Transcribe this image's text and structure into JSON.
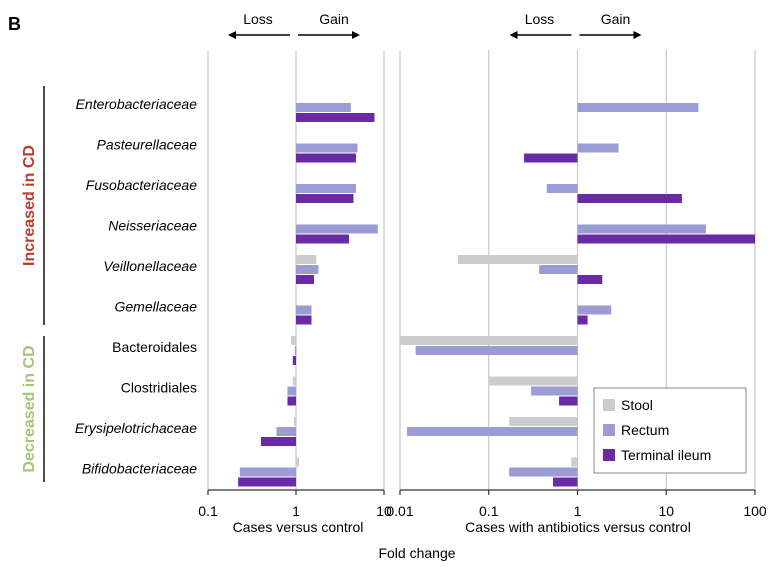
{
  "panel_label": "B",
  "colors": {
    "stool": "#cccccc",
    "rectum": "#9b9bd6",
    "ileum": "#6a2aa6",
    "increased": "#c0392b",
    "decreased": "#a6c47a",
    "grid": "#c8c8c8",
    "axis": "#333333"
  },
  "chart_data": {
    "type": "bar",
    "orientation": "horizontal",
    "scale": "log",
    "xlabel": "Fold change",
    "series_names": [
      "Stool",
      "Rectum",
      "Terminal ileum"
    ],
    "categories": [
      "Enterobacteriaceae",
      "Pasteurellaceae",
      "Fusobacteriaceae",
      "Neisseriaceae",
      "Veillonellaceae",
      "Gemellaceae",
      "Bacteroidales",
      "Clostridiales",
      "Erysipelotrichaceae",
      "Bifidobacteriaceae"
    ],
    "italic": [
      true,
      true,
      true,
      true,
      true,
      true,
      false,
      false,
      true,
      true
    ],
    "groups": [
      {
        "label": "Increased in CD",
        "from": 0,
        "to": 5
      },
      {
        "label": "Decreased in CD",
        "from": 6,
        "to": 9
      }
    ],
    "direction": {
      "loss": "Loss",
      "gain": "Gain"
    },
    "panels": [
      {
        "title": "Cases versus control",
        "xlim": [
          0.1,
          10
        ],
        "ticks": [
          0.1,
          1,
          10
        ],
        "tick_labels": [
          "0.1",
          "1",
          "10"
        ],
        "series": [
          {
            "name": "Stool",
            "values": [
              null,
              null,
              null,
              null,
              1.7,
              null,
              0.88,
              0.92,
              0.95,
              1.08
            ]
          },
          {
            "name": "Rectum",
            "values": [
              4.2,
              5.0,
              4.8,
              8.5,
              1.8,
              1.5,
              0.97,
              0.8,
              0.6,
              0.23
            ]
          },
          {
            "name": "Terminal ileum",
            "values": [
              7.8,
              4.8,
              4.5,
              4.0,
              1.6,
              1.5,
              0.92,
              0.8,
              0.4,
              0.22
            ]
          }
        ]
      },
      {
        "title": "Cases with antibiotics versus control",
        "xlim": [
          0.01,
          100
        ],
        "ticks": [
          0.01,
          0.1,
          1,
          10,
          100
        ],
        "tick_labels": [
          "0.01",
          "0.1",
          "1",
          "10",
          "100"
        ],
        "series": [
          {
            "name": "Stool",
            "values": [
              null,
              null,
              null,
              null,
              0.045,
              null,
              0.01,
              0.1,
              0.17,
              0.85
            ]
          },
          {
            "name": "Rectum",
            "values": [
              23,
              2.9,
              0.45,
              28,
              0.37,
              2.4,
              0.015,
              0.3,
              0.012,
              0.17
            ]
          },
          {
            "name": "Terminal ileum",
            "values": [
              null,
              0.25,
              15,
              100,
              1.9,
              1.3,
              null,
              0.62,
              null,
              0.53
            ]
          }
        ]
      }
    ]
  },
  "legend": {
    "items": [
      "Stool",
      "Rectum",
      "Terminal ileum"
    ]
  }
}
